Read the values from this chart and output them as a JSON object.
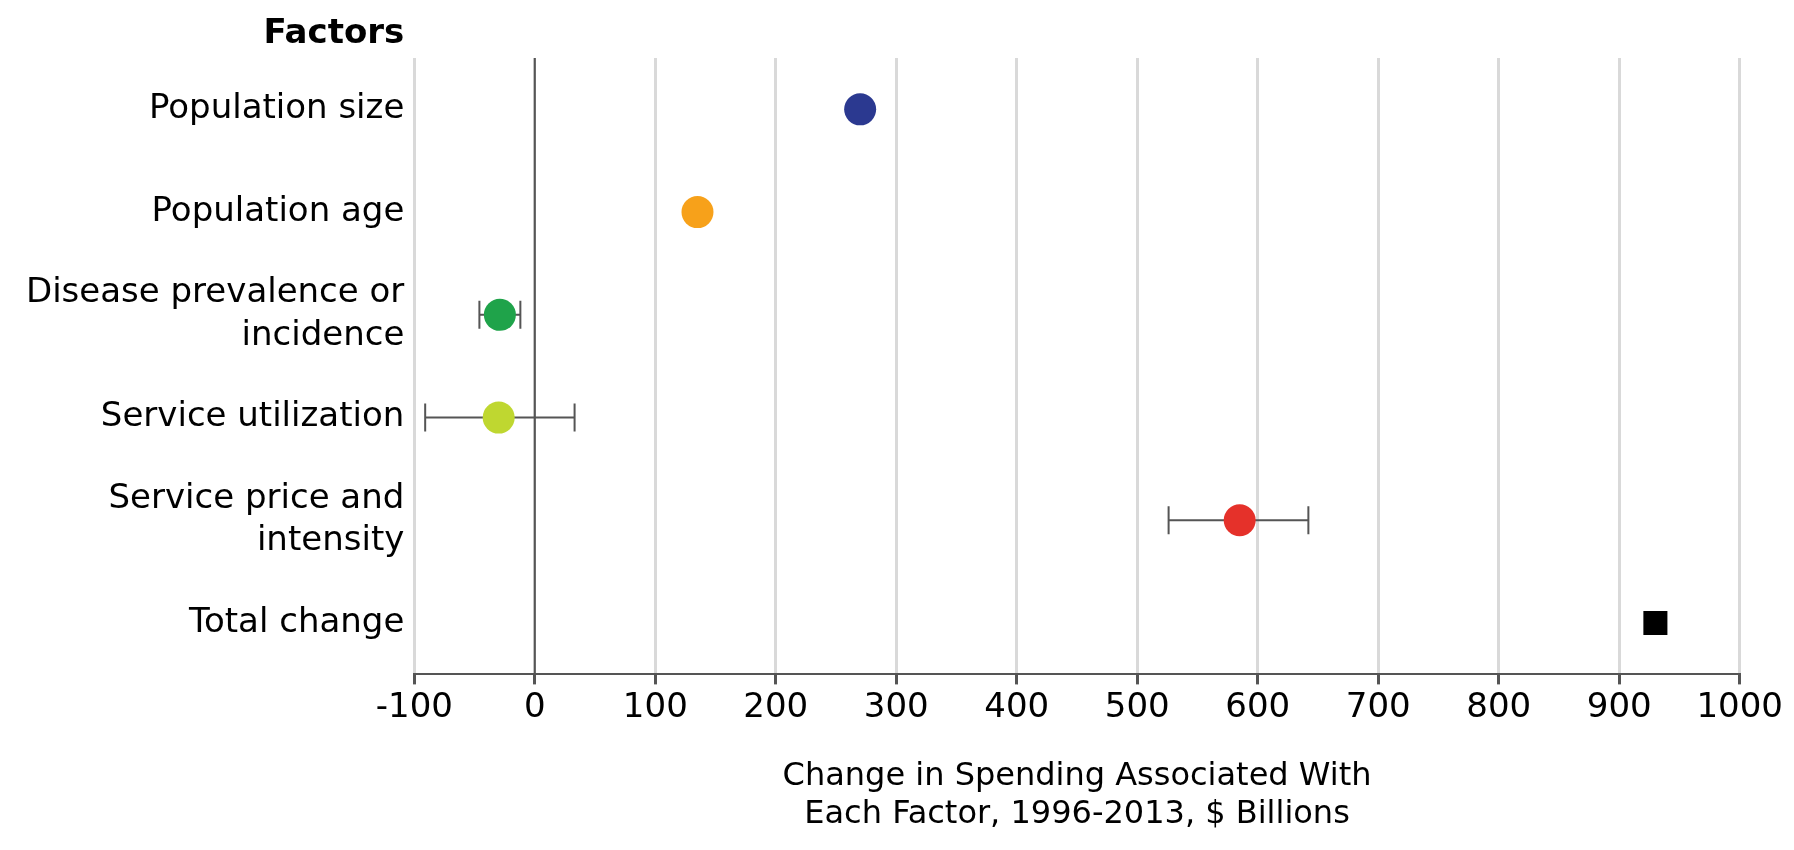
{
  "chart_data": {
    "type": "scatter",
    "orientation": "horizontal",
    "ylabel": "Factors",
    "xlabel": "Change in Spending Associated With Each Factor, 1996-2013, $ Billions",
    "categories": [
      "Population size",
      "Population age",
      "Disease prevalence or incidence",
      "Service utilization",
      "Service price and intensity",
      "Total change"
    ],
    "series": [
      {
        "marker": "circle",
        "colors": [
          "#2b3990",
          "#f7a11a",
          "#1fa34a",
          "#bfd730",
          "#e5312a",
          null
        ],
        "values": [
          270,
          135,
          -29,
          -30,
          585,
          null
        ],
        "errors": [
          null,
          null,
          [
            -46,
            -12
          ],
          [
            -91,
            33
          ],
          [
            526,
            642
          ],
          null
        ]
      },
      {
        "marker": "square",
        "color": "#000000",
        "values": [
          null,
          null,
          null,
          null,
          null,
          930
        ]
      }
    ],
    "xlim": [
      -100,
      1000
    ],
    "xticks": [
      -100,
      0,
      100,
      200,
      300,
      400,
      500,
      600,
      700,
      800,
      900,
      1000
    ],
    "grid": "x",
    "legend": false,
    "ref_lines": [
      {
        "axis": "x",
        "value": 0,
        "color": "#555555"
      }
    ]
  }
}
